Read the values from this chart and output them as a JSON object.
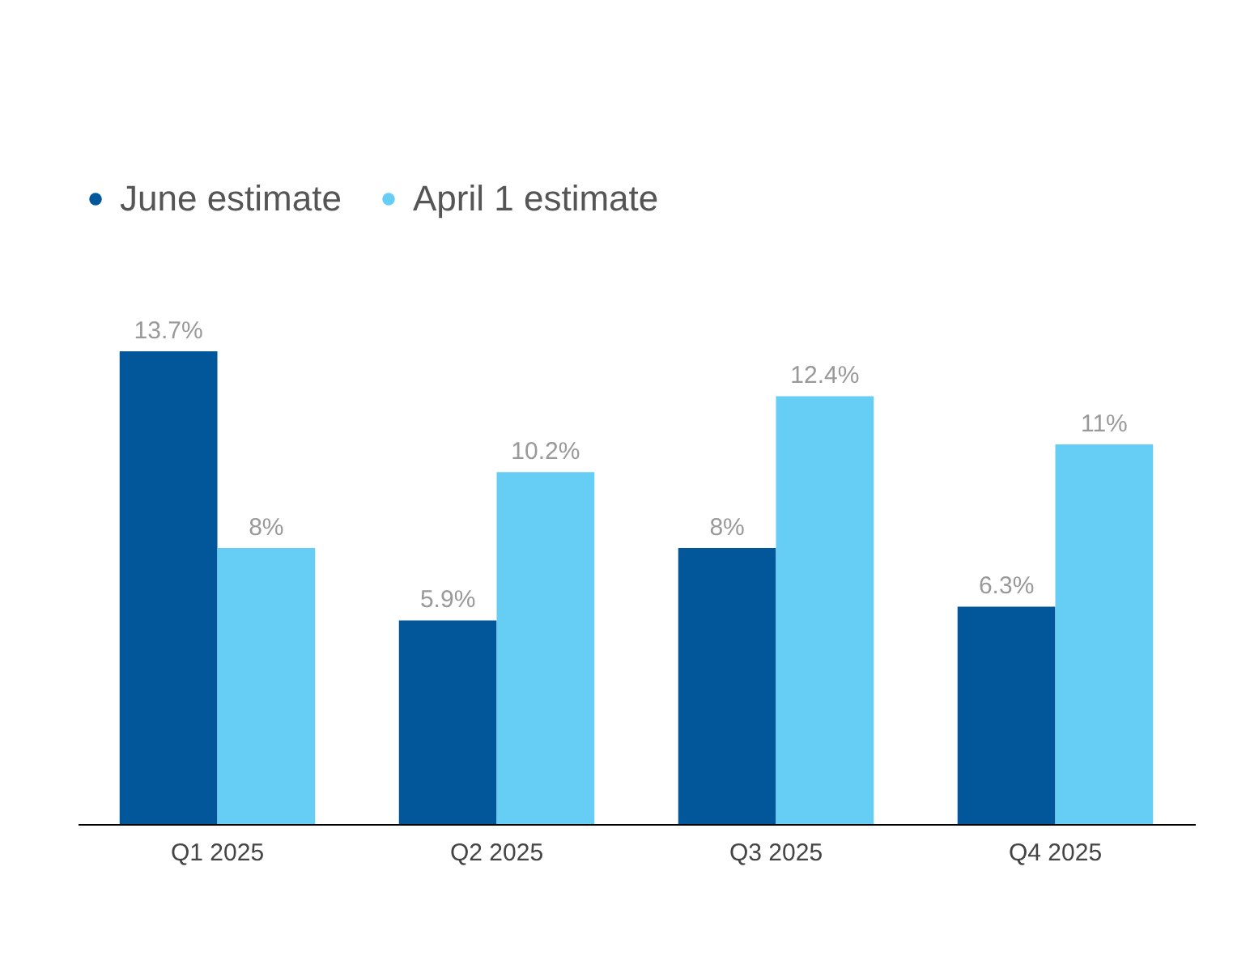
{
  "chart_data": {
    "type": "bar",
    "categories": [
      "Q1 2025",
      "Q2 2025",
      "Q3 2025",
      "Q4 2025"
    ],
    "series": [
      {
        "name": "June estimate",
        "color": "#02569a",
        "values": [
          13.7,
          5.9,
          8,
          6.3
        ],
        "value_labels": [
          "13.7%",
          "5.9%",
          "8%",
          "6.3%"
        ]
      },
      {
        "name": "April 1 estimate",
        "color": "#66cef5",
        "values": [
          8,
          10.2,
          12.4,
          11
        ],
        "value_labels": [
          "8%",
          "10.2%",
          "12.4%",
          "11%"
        ]
      }
    ],
    "legend": "top left",
    "marker": "circle"
  }
}
